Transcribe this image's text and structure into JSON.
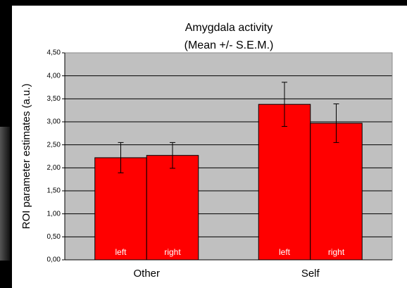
{
  "chart_data": {
    "type": "bar",
    "title": "Amygdala activity",
    "subtitle": "(Mean +/- S.E.M.)",
    "y_label": "ROI parameter estimates (a.u.)",
    "categories": [
      "Other",
      "Self"
    ],
    "series": [
      {
        "name": "left",
        "color": "#ff0000",
        "values": [
          2.22,
          3.38
        ],
        "errors": [
          0.33,
          0.48
        ]
      },
      {
        "name": "right",
        "color": "#ff0000",
        "values": [
          2.27,
          2.97
        ],
        "errors": [
          0.28,
          0.42
        ]
      }
    ],
    "ylim": [
      0,
      4.5
    ],
    "yticks": [
      {
        "value": 0,
        "label": "0,00"
      },
      {
        "value": 0.5,
        "label": "0,50"
      },
      {
        "value": 1,
        "label": "1,00"
      },
      {
        "value": 1.5,
        "label": "1,50"
      },
      {
        "value": 2,
        "label": "2,00"
      },
      {
        "value": 2.5,
        "label": "2,50"
      },
      {
        "value": 3,
        "label": "3,00"
      },
      {
        "value": 3.5,
        "label": "3,50"
      },
      {
        "value": 4,
        "label": "4,00"
      },
      {
        "value": 4.5,
        "label": "4,50"
      }
    ],
    "grid": true
  }
}
